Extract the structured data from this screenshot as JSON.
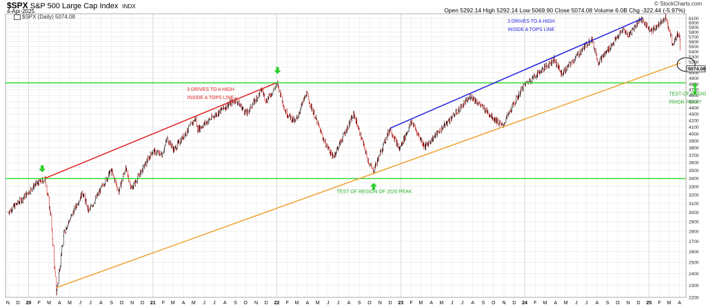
{
  "header": {
    "ticker": "$SPX",
    "name": "S&P 500 Large Cap Index",
    "exchange": "INDX",
    "date": "4-Apr-2025",
    "legend": "$SPX (Daily) 5074.08",
    "watermark": "© StockCharts.com",
    "ohlc": [
      {
        "label": "Open",
        "value": "5292.14"
      },
      {
        "label": "High",
        "value": "5292.14"
      },
      {
        "label": "Low",
        "value": "5069.90"
      },
      {
        "label": "Close",
        "value": "5074.08"
      },
      {
        "label": "Volume",
        "value": "6.0B"
      },
      {
        "label": "Chg",
        "value": "-322.44 (-5.97%)"
      }
    ]
  },
  "colors": {
    "up": "#000000",
    "down": "#cc0000",
    "grid": "#e6e6e6",
    "green_level": "#22dd22",
    "red_line": "#e02020",
    "blue_line": "#2020dd",
    "orange_line": "#f0a030",
    "arrow": "#22cc22",
    "price_label": "#000000"
  },
  "chart_data": {
    "type": "candlestick",
    "y_scale": "log",
    "ylim": [
      2200,
      6200
    ],
    "y_ticks": [
      2200,
      2300,
      2400,
      2500,
      2600,
      2700,
      2800,
      2900,
      3000,
      3100,
      3200,
      3300,
      3400,
      3500,
      3600,
      3700,
      3800,
      3900,
      4000,
      4100,
      4200,
      4300,
      4400,
      4500,
      4600,
      4700,
      4800,
      4900,
      5000,
      5100,
      5200,
      5300,
      5400,
      5500,
      5600,
      5700,
      5800,
      5900,
      6000,
      6100
    ],
    "x_labels": [
      "N",
      "D",
      "20",
      "F",
      "M",
      "A",
      "M",
      "J",
      "J",
      "A",
      "S",
      "O",
      "N",
      "D",
      "21",
      "F",
      "M",
      "A",
      "M",
      "J",
      "J",
      "A",
      "S",
      "O",
      "N",
      "D",
      "22",
      "F",
      "M",
      "A",
      "M",
      "J",
      "J",
      "A",
      "S",
      "O",
      "N",
      "D",
      "23",
      "F",
      "M",
      "A",
      "M",
      "J",
      "J",
      "A",
      "S",
      "O",
      "N",
      "D",
      "24",
      "F",
      "M",
      "A",
      "M",
      "J",
      "J",
      "A",
      "S",
      "O",
      "N",
      "D",
      "25",
      "F",
      "M",
      "A"
    ],
    "bold_labels": [
      "20",
      "21",
      "22",
      "23",
      "24",
      "25"
    ],
    "last_price": "5074.08",
    "anchors": [
      [
        "2019-11-01",
        3000
      ],
      [
        "2019-12-15",
        3160
      ],
      [
        "2020-01-20",
        3320
      ],
      [
        "2020-02-19",
        3390
      ],
      [
        "2020-03-06",
        2970
      ],
      [
        "2020-03-23",
        2240
      ],
      [
        "2020-04-15",
        2800
      ],
      [
        "2020-06-08",
        3230
      ],
      [
        "2020-06-26",
        3010
      ],
      [
        "2020-08-31",
        3500
      ],
      [
        "2020-09-23",
        3240
      ],
      [
        "2020-10-12",
        3530
      ],
      [
        "2020-10-30",
        3270
      ],
      [
        "2020-12-31",
        3750
      ],
      [
        "2021-01-29",
        3710
      ],
      [
        "2021-02-12",
        3930
      ],
      [
        "2021-03-04",
        3770
      ],
      [
        "2021-05-07",
        4230
      ],
      [
        "2021-05-12",
        4060
      ],
      [
        "2021-07-30",
        4400
      ],
      [
        "2021-09-02",
        4530
      ],
      [
        "2021-10-04",
        4300
      ],
      [
        "2021-11-18",
        4700
      ],
      [
        "2021-12-01",
        4510
      ],
      [
        "2022-01-03",
        4800
      ],
      [
        "2022-01-27",
        4330
      ],
      [
        "2022-02-24",
        4170
      ],
      [
        "2022-03-29",
        4630
      ],
      [
        "2022-05-20",
        3900
      ],
      [
        "2022-06-16",
        3670
      ],
      [
        "2022-08-16",
        4300
      ],
      [
        "2022-09-30",
        3590
      ],
      [
        "2022-10-12",
        3490
      ],
      [
        "2022-11-30",
        4080
      ],
      [
        "2022-12-28",
        3780
      ],
      [
        "2023-02-02",
        4180
      ],
      [
        "2023-03-13",
        3810
      ],
      [
        "2023-07-27",
        4590
      ],
      [
        "2023-10-27",
        4110
      ],
      [
        "2023-12-29",
        4770
      ],
      [
        "2024-03-28",
        5250
      ],
      [
        "2024-04-19",
        4970
      ],
      [
        "2024-07-16",
        5670
      ],
      [
        "2024-08-05",
        5190
      ],
      [
        "2024-10-18",
        5860
      ],
      [
        "2024-11-01",
        5720
      ],
      [
        "2024-12-06",
        6090
      ],
      [
        "2025-01-10",
        5820
      ],
      [
        "2025-02-19",
        6140
      ],
      [
        "2025-03-13",
        5520
      ],
      [
        "2025-03-25",
        5780
      ],
      [
        "2025-04-02",
        5680
      ],
      [
        "2025-04-03",
        5396
      ],
      [
        "2025-04-04",
        5074
      ]
    ],
    "levels": [
      {
        "name": "prior-2022-peak",
        "value": 4818,
        "color": "#22dd22"
      },
      {
        "name": "prior-2020-peak",
        "value": 3395,
        "color": "#22dd22"
      }
    ],
    "trendlines": [
      {
        "name": "red-tops-line",
        "color": "#e02020",
        "points": [
          [
            "2020-02-19",
            3400
          ],
          [
            "2021-12-28",
            4810
          ]
        ]
      },
      {
        "name": "blue-tops-line",
        "color": "#2020dd",
        "points": [
          [
            "2022-11-30",
            4080
          ],
          [
            "2024-12-12",
            6090
          ]
        ]
      },
      {
        "name": "orange-support-line",
        "color": "#f0a030",
        "points": [
          [
            "2020-03-23",
            2280
          ],
          [
            "2025-04-04",
            5180
          ]
        ]
      }
    ],
    "arrows": [
      {
        "name": "arrow-2020-peak",
        "direction": "down",
        "date": "2020-02-10",
        "price": 3520
      },
      {
        "name": "arrow-2022-peak",
        "direction": "down",
        "date": "2022-01-03",
        "price": 5040
      },
      {
        "name": "arrow-2022-low",
        "direction": "up",
        "date": "2022-10-13",
        "price": 3300
      },
      {
        "name": "arrow-right-updown",
        "direction": "updown",
        "date": "2025-04-25",
        "price": 4710
      }
    ],
    "annotations": [
      {
        "name": "red-annotation",
        "color": "#e02020",
        "lines": [
          "3 DRIVES TO A HIGH",
          "INSIDE A TOPS LINE"
        ],
        "date": "2021-06-20",
        "price": 4680
      },
      {
        "name": "blue-annotation",
        "color": "#2020dd",
        "lines": [
          "3 DRIVES TO A HIGH",
          "INSIDE A TOPS LINE"
        ],
        "date": "2024-01-20",
        "price": 6000
      },
      {
        "name": "green-annotation-2020",
        "color": "#22aa22",
        "lines": [
          "TEST OF REGION OF 2020 PEAK"
        ],
        "date": "2022-10-15",
        "price": 3220
      },
      {
        "name": "green-annotation-prior",
        "color": "#22aa22",
        "lines": [
          "TEST OF REGION OF",
          "PRIOR PEAK?"
        ],
        "date": "2025-03-05",
        "price": 4600
      }
    ]
  }
}
